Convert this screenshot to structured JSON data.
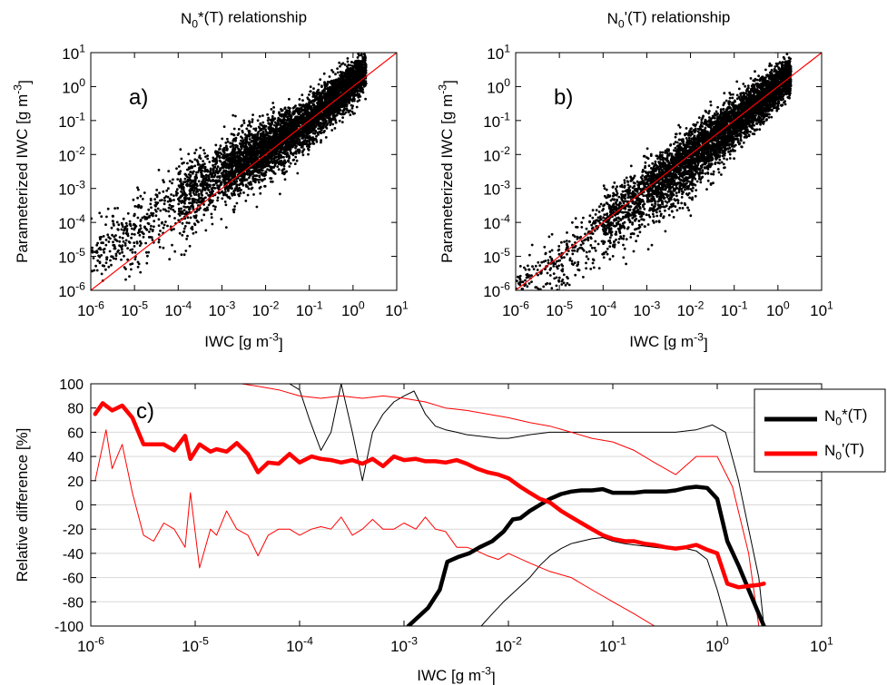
{
  "colors": {
    "scatter": "#000000",
    "identity_line": "#ff0000",
    "n0star": "#000000",
    "n0prime": "#ff0000",
    "grid": "#d9d9d9"
  },
  "chart_data": [
    {
      "panel": "a)",
      "type": "scatter",
      "title": {
        "base": "N",
        "sub": "0",
        "tail": "*(T) relationship"
      },
      "xlabel": {
        "base": "IWC [g m",
        "sup": "-3",
        "tail": "]"
      },
      "ylabel": {
        "base": "Parameterized IWC [g m",
        "sup": "-3",
        "tail": "]"
      },
      "xscale": "log",
      "yscale": "log",
      "xlim": [
        1e-06,
        10
      ],
      "ylim": [
        1e-06,
        10
      ],
      "x_ticks": [
        "10^-6",
        "10^-5",
        "10^-4",
        "10^-3",
        "10^-2",
        "10^-1",
        "10^0",
        "10^1"
      ],
      "y_ticks": [
        "10^-6",
        "10^-5",
        "10^-4",
        "10^-3",
        "10^-2",
        "10^-1",
        "10^0",
        "10^1"
      ],
      "reference_line": "1:1",
      "cloud": [
        {
          "x": 1e-06,
          "center": 8e-06,
          "spread_low": 0.5,
          "spread_high": 0.55
        },
        {
          "x": 1e-05,
          "center": 6e-05,
          "spread_low": 0.55,
          "spread_high": 0.55
        },
        {
          "x": 0.0001,
          "center": 0.0005,
          "spread_low": 0.6,
          "spread_high": 0.5
        },
        {
          "x": 0.001,
          "center": 0.003,
          "spread_low": 0.5,
          "spread_high": 0.45
        },
        {
          "x": 0.01,
          "center": 0.015,
          "spread_low": 0.45,
          "spread_high": 0.4
        },
        {
          "x": 0.1,
          "center": 0.1,
          "spread_low": 0.35,
          "spread_high": 0.35
        },
        {
          "x": 1,
          "center": 1.3,
          "spread_low": 0.3,
          "spread_high": 0.3
        },
        {
          "x": 2,
          "center": 3.5,
          "spread_low": 0.25,
          "spread_high": 0.25
        }
      ]
    },
    {
      "panel": "b)",
      "type": "scatter",
      "title": {
        "base": "N",
        "sub": "0",
        "tail": "'(T) relationship"
      },
      "xlabel": {
        "base": "IWC [g m",
        "sup": "-3",
        "tail": "]"
      },
      "ylabel": {
        "base": "Parameterized IWC [g m",
        "sup": "-3",
        "tail": "]"
      },
      "xscale": "log",
      "yscale": "log",
      "xlim": [
        1e-06,
        10
      ],
      "ylim": [
        1e-06,
        10
      ],
      "x_ticks": [
        "10^-6",
        "10^-5",
        "10^-4",
        "10^-3",
        "10^-2",
        "10^-1",
        "10^0",
        "10^1"
      ],
      "y_ticks": [
        "10^-6",
        "10^-5",
        "10^-4",
        "10^-3",
        "10^-2",
        "10^-1",
        "10^0",
        "10^1"
      ],
      "reference_line": "1:1",
      "cloud": [
        {
          "x": 1e-06,
          "center": 1e-06,
          "spread_low": 0.4,
          "spread_high": 0.3
        },
        {
          "x": 1e-05,
          "center": 7e-06,
          "spread_low": 0.6,
          "spread_high": 0.4
        },
        {
          "x": 0.0001,
          "center": 9e-05,
          "spread_low": 0.6,
          "spread_high": 0.4
        },
        {
          "x": 0.001,
          "center": 0.0009,
          "spread_low": 0.55,
          "spread_high": 0.4
        },
        {
          "x": 0.01,
          "center": 0.008,
          "spread_low": 0.5,
          "spread_high": 0.4
        },
        {
          "x": 0.1,
          "center": 0.09,
          "spread_low": 0.4,
          "spread_high": 0.35
        },
        {
          "x": 1,
          "center": 1,
          "spread_low": 0.3,
          "spread_high": 0.3
        },
        {
          "x": 2,
          "center": 2.5,
          "spread_low": 0.25,
          "spread_high": 0.25
        }
      ]
    },
    {
      "panel": "c)",
      "type": "line",
      "xlabel": {
        "base": "IWC [g m",
        "sup": "-3",
        "tail": "]"
      },
      "ylabel": "Relative difference [%]",
      "xscale": "log",
      "xlim": [
        1e-06,
        10
      ],
      "ylim": [
        -100,
        100
      ],
      "x_ticks": [
        "10^-6",
        "10^-5",
        "10^-4",
        "10^-3",
        "10^-2",
        "10^-1",
        "10^0",
        "10^1"
      ],
      "y_ticks": [
        -100,
        -80,
        -60,
        -40,
        -20,
        0,
        20,
        40,
        60,
        80,
        100
      ],
      "grid": "horizontal",
      "legend_position": "top-right",
      "legend": [
        {
          "base": "N",
          "sub": "0",
          "tail": "*(T)",
          "color": "#000000"
        },
        {
          "base": "N",
          "sub": "0",
          "tail": "'(T)",
          "color": "#ff0000"
        }
      ],
      "series": [
        {
          "key": "n0star_mean",
          "color": "#000000",
          "width": 4.5,
          "x": [
            0.0011,
            0.0017,
            0.0022,
            0.0026,
            0.0033,
            0.0042,
            0.0053,
            0.007,
            0.009,
            0.011,
            0.013,
            0.016,
            0.02,
            0.025,
            0.032,
            0.04,
            0.05,
            0.063,
            0.08,
            0.1,
            0.13,
            0.16,
            0.2,
            0.25,
            0.32,
            0.4,
            0.5,
            0.63,
            0.8,
            1.0,
            1.25,
            1.6,
            2.0,
            2.5,
            2.8
          ],
          "y": [
            -100,
            -85,
            -70,
            -47,
            -43,
            -40,
            -35,
            -30,
            -22,
            -12,
            -11,
            -5,
            0,
            5,
            9,
            11,
            12,
            12,
            13,
            10,
            10,
            10,
            11,
            11,
            11,
            12,
            14,
            15,
            14,
            5,
            -30,
            -50,
            -70,
            -90,
            -100
          ]
        },
        {
          "key": "n0star_band_upper",
          "color": "#000000",
          "width": 1,
          "x": [
            6.3e-05,
            8e-05,
            0.0001,
            0.000125,
            0.00016,
            0.0002,
            0.00025,
            0.00032,
            0.0004,
            0.0005,
            0.00063,
            0.0008,
            0.001,
            0.00125,
            0.0016,
            0.002,
            0.0025,
            0.0032,
            0.004,
            0.005,
            0.0063,
            0.008,
            0.01,
            0.016,
            0.025,
            0.04,
            0.063,
            0.1,
            0.16,
            0.25,
            0.4,
            0.63,
            0.9,
            1.2,
            1.6,
            2.0,
            2.5,
            2.8
          ],
          "y": [
            100,
            100,
            95,
            70,
            45,
            60,
            100,
            60,
            20,
            60,
            75,
            85,
            90,
            94,
            75,
            65,
            62,
            60,
            58,
            57,
            56,
            55,
            55,
            58,
            60,
            60,
            60,
            60,
            60,
            60,
            60,
            62,
            66,
            60,
            20,
            -20,
            -60,
            -100
          ]
        },
        {
          "key": "n0star_band_lower",
          "color": "#000000",
          "width": 1,
          "x": [
            0.0055,
            0.007,
            0.009,
            0.012,
            0.016,
            0.02,
            0.025,
            0.032,
            0.04,
            0.05,
            0.063,
            0.08,
            0.1,
            0.13,
            0.16,
            0.2,
            0.25,
            0.32,
            0.4,
            0.5,
            0.63,
            0.8,
            1.0,
            1.25
          ],
          "y": [
            -100,
            -90,
            -80,
            -70,
            -60,
            -50,
            -42,
            -36,
            -32,
            -30,
            -28,
            -27,
            -30,
            -32,
            -33,
            -34,
            -35,
            -36,
            -37,
            -36,
            -38,
            -45,
            -70,
            -100
          ]
        },
        {
          "key": "n0prime_mean",
          "color": "#ff0000",
          "width": 4.5,
          "x": [
            1.1e-06,
            1.3e-06,
            1.6e-06,
            2e-06,
            2.5e-06,
            3.2e-06,
            4e-06,
            5e-06,
            6.3e-06,
            8e-06,
            9e-06,
            1.1e-05,
            1.4e-05,
            1.6e-05,
            2e-05,
            2.5e-05,
            3.2e-05,
            4e-05,
            5e-05,
            6.3e-05,
            8e-05,
            0.0001,
            0.00013,
            0.00016,
            0.0002,
            0.00025,
            0.00032,
            0.0004,
            0.0005,
            0.00063,
            0.0008,
            0.001,
            0.0013,
            0.0016,
            0.002,
            0.0025,
            0.0032,
            0.004,
            0.005,
            0.0063,
            0.008,
            0.01,
            0.013,
            0.016,
            0.02,
            0.025,
            0.032,
            0.04,
            0.05,
            0.063,
            0.08,
            0.1,
            0.13,
            0.16,
            0.2,
            0.25,
            0.32,
            0.4,
            0.5,
            0.63,
            0.8,
            1.0,
            1.25,
            1.6,
            2.0,
            2.5,
            2.8
          ],
          "y": [
            75,
            84,
            78,
            82,
            72,
            50,
            50,
            50,
            45,
            57,
            38,
            50,
            44,
            46,
            44,
            51,
            42,
            27,
            35,
            34,
            42,
            35,
            40,
            38,
            37,
            35,
            37,
            34,
            38,
            32,
            40,
            37,
            38,
            36,
            36,
            35,
            37,
            34,
            30,
            27,
            25,
            22,
            15,
            10,
            5,
            2,
            -5,
            -10,
            -15,
            -20,
            -25,
            -28,
            -30,
            -30,
            -32,
            -33,
            -35,
            -36,
            -35,
            -33,
            -37,
            -40,
            -65,
            -68,
            -67,
            -66,
            -65
          ]
        },
        {
          "key": "n0prime_band_upper",
          "color": "#ff0000",
          "width": 1,
          "x": [
            2.8e-05,
            4e-05,
            6.3e-05,
            0.0001,
            0.00016,
            0.00025,
            0.0004,
            0.00063,
            0.001,
            0.0016,
            0.0025,
            0.004,
            0.0063,
            0.01,
            0.016,
            0.025,
            0.04,
            0.063,
            0.1,
            0.16,
            0.25,
            0.4,
            0.63,
            1.0,
            1.4,
            2.0,
            2.5
          ],
          "y": [
            100,
            98,
            95,
            90,
            88,
            90,
            88,
            90,
            88,
            85,
            80,
            78,
            75,
            72,
            68,
            65,
            60,
            55,
            52,
            45,
            35,
            25,
            40,
            40,
            15,
            -40,
            -100
          ]
        },
        {
          "key": "n0prime_band_lower",
          "color": "#ff0000",
          "width": 1,
          "x": [
            1.1e-06,
            1.4e-06,
            1.6e-06,
            2e-06,
            2.5e-06,
            3.2e-06,
            4e-06,
            5e-06,
            6.3e-06,
            8e-06,
            9e-06,
            1.1e-05,
            1.4e-05,
            1.6e-05,
            2e-05,
            2.5e-05,
            3.2e-05,
            4e-05,
            5e-05,
            6.3e-05,
            8e-05,
            0.0001,
            0.00013,
            0.00016,
            0.0002,
            0.00025,
            0.00032,
            0.0004,
            0.0005,
            0.00063,
            0.0008,
            0.001,
            0.0013,
            0.0016,
            0.002,
            0.0025,
            0.0032,
            0.004,
            0.005,
            0.0063,
            0.008,
            0.01,
            0.016,
            0.025,
            0.04,
            0.063,
            0.1,
            0.16,
            0.25,
            0.32,
            0.4
          ],
          "y": [
            20,
            62,
            30,
            50,
            10,
            -25,
            -30,
            -15,
            -20,
            -35,
            10,
            -52,
            -20,
            -25,
            -5,
            -20,
            -25,
            -42,
            -25,
            -20,
            -20,
            -25,
            -20,
            -18,
            -20,
            -10,
            -25,
            -20,
            -12,
            -20,
            -20,
            -15,
            -20,
            -10,
            -20,
            -22,
            -35,
            -35,
            -38,
            -42,
            -45,
            -40,
            -48,
            -55,
            -60,
            -70,
            -80,
            -90,
            -100,
            -100,
            -100
          ]
        }
      ]
    }
  ]
}
